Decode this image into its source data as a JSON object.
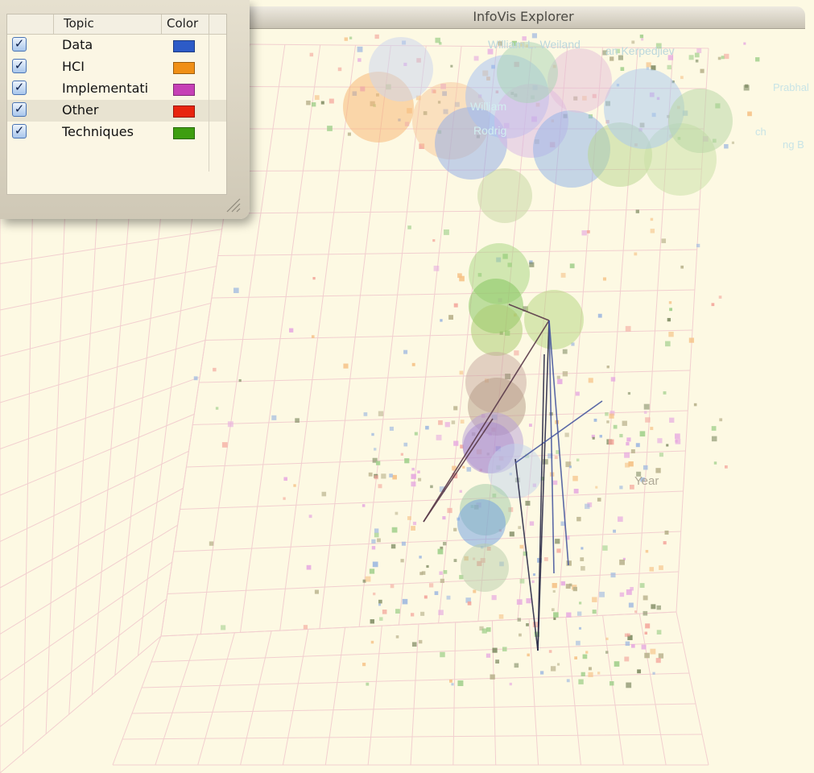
{
  "window": {
    "title": "InfoVis Explorer"
  },
  "legend": {
    "headers": {
      "topic": "Topic",
      "color": "Color"
    },
    "items": [
      {
        "label": "Data",
        "color": "#2d5bc7",
        "checked": true,
        "selected": false
      },
      {
        "label": "HCI",
        "color": "#f08f16",
        "checked": true,
        "selected": false
      },
      {
        "label": "Implementati",
        "color": "#c640b6",
        "checked": true,
        "selected": false
      },
      {
        "label": "Other",
        "color": "#e8240e",
        "checked": true,
        "selected": true
      },
      {
        "label": "Techniques",
        "color": "#3e9e10",
        "checked": true,
        "selected": false
      }
    ]
  },
  "viz": {
    "axis_label": "Year",
    "author_labels": [
      "William L. Weiland",
      "an Kerpedjiev",
      "William",
      "Rodrig",
      "Prabhal",
      "ng B",
      "ch"
    ]
  }
}
